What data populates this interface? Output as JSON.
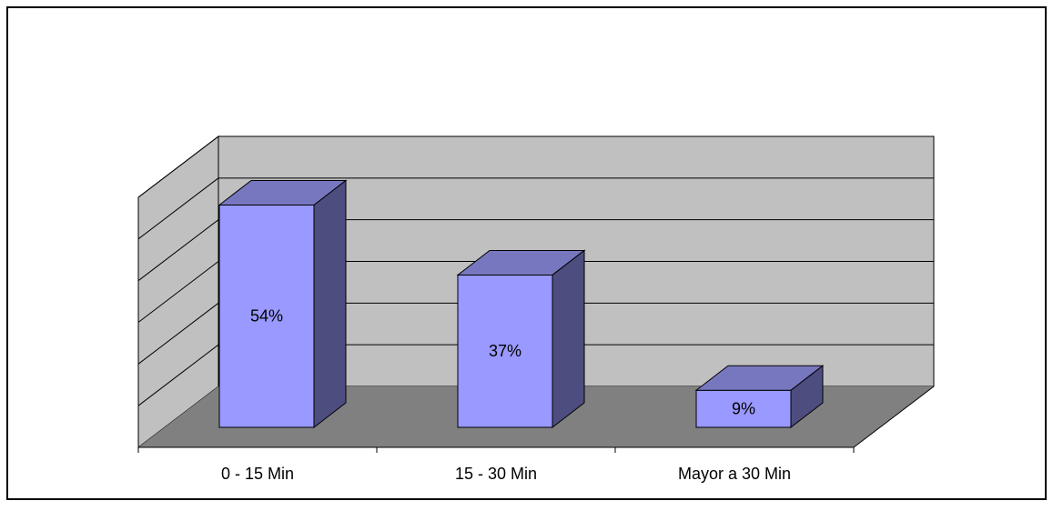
{
  "chart_data": {
    "type": "bar",
    "style": "3d-column",
    "categories": [
      "0 - 15 Min",
      "15 - 30 Min",
      "Mayor a 30 Min"
    ],
    "values": [
      54,
      37,
      9
    ],
    "data_labels": [
      "54%",
      "37%",
      "9%"
    ],
    "title": "",
    "xlabel": "",
    "ylabel": "",
    "ylim": [
      0,
      60
    ],
    "y_ticks": [
      0,
      10,
      20,
      30,
      40,
      50,
      60
    ],
    "grid": true,
    "legend": "none",
    "colors": {
      "bar_front": "#9999ff",
      "bar_top": "#7777c0",
      "bar_side": "#4d4d80",
      "back_wall": "#c0c0c0",
      "side_wall": "#c0c0c0",
      "floor": "#808080",
      "border": "#000000",
      "gridline": "#000000"
    }
  }
}
